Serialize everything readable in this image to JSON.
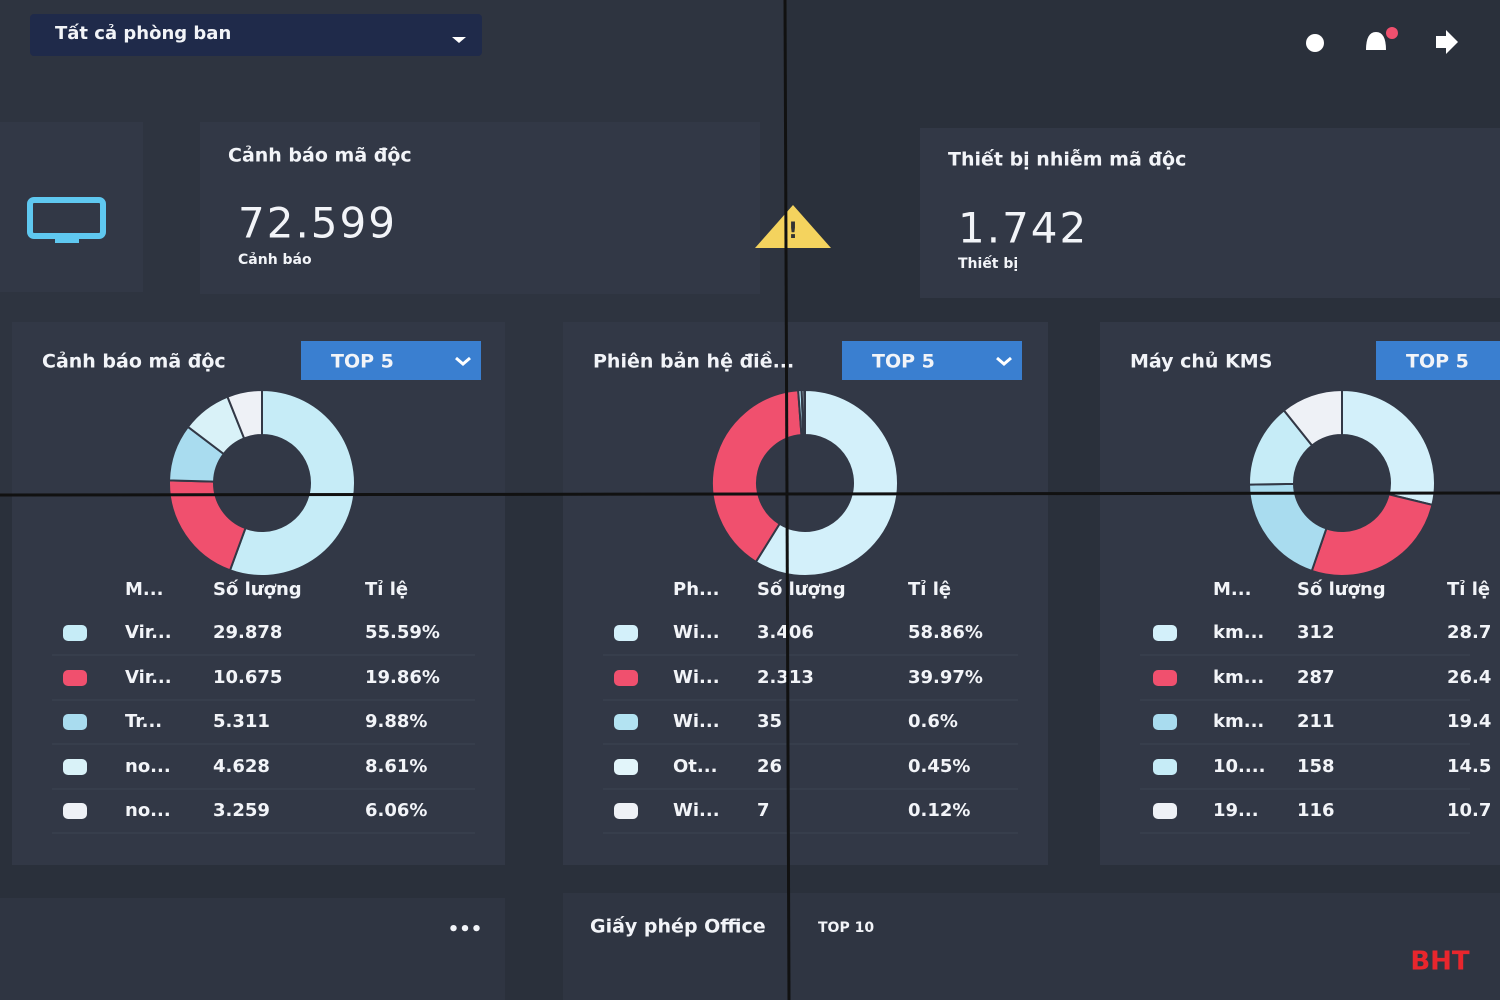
{
  "header": {
    "department_filter": "Tất cả phòng ban"
  },
  "summary": [
    {
      "title": "Cảnh báo mã độc",
      "value": "72.599",
      "unit": "Cảnh báo"
    },
    {
      "title": "Thiết bị nhiễm mã độc",
      "value": "1.742",
      "unit": "Thiết bị"
    }
  ],
  "panels": [
    {
      "title": "Cảnh báo mã độc",
      "filter": "TOP 5",
      "columns": [
        "M...",
        "Số lượng",
        "Tỉ lệ"
      ],
      "names": [
        "Vir...",
        "Vir...",
        "Tr...",
        "no...",
        "no..."
      ],
      "counts": [
        "29.878",
        "10.675",
        "5.311",
        "4.628",
        "3.259"
      ],
      "values": [
        55.59,
        19.86,
        9.88,
        8.61,
        6.06
      ],
      "value_labels": [
        "55.59%",
        "19.86%",
        "9.88%",
        "8.61%",
        "6.06%"
      ],
      "colors": [
        "#c6ecf7",
        "#f0506e",
        "#a9dcef",
        "#d9f2f8",
        "#eef1f6"
      ]
    },
    {
      "title": "Phiên bản hệ điề...",
      "filter": "TOP 5",
      "columns": [
        "Ph...",
        "Số lượng",
        "Tỉ lệ"
      ],
      "names": [
        "Wi...",
        "Wi...",
        "Wi...",
        "Ot...",
        "Wi..."
      ],
      "counts": [
        "3.406",
        "2.313",
        "35",
        "26",
        "7"
      ],
      "values": [
        58.86,
        39.97,
        0.6,
        0.45,
        0.12
      ],
      "value_labels": [
        "58.86%",
        "39.97%",
        "0.6%",
        "0.45%",
        "0.12%"
      ],
      "colors": [
        "#d3f0fa",
        "#f0506e",
        "#b3e3f2",
        "#e2f5fa",
        "#eef1f6"
      ]
    },
    {
      "title": "Máy chủ KMS",
      "filter": "TOP 5",
      "columns": [
        "M...",
        "Số lượng",
        "Tỉ lệ"
      ],
      "names": [
        "km...",
        "km...",
        "km...",
        "10....",
        "19..."
      ],
      "counts": [
        "312",
        "287",
        "211",
        "158",
        "116"
      ],
      "values": [
        28.7,
        26.4,
        19.4,
        14.5,
        10.7
      ],
      "value_labels": [
        "28.7",
        "26.4",
        "19.4",
        "14.5",
        "10.7"
      ],
      "colors": [
        "#d3f0fa",
        "#f0506e",
        "#a9dcef",
        "#c6ecf7",
        "#eef1f6"
      ]
    }
  ],
  "bottom": {
    "title": "Giấy phép Office",
    "filter": "TOP 10"
  },
  "watermark": "BHT"
}
